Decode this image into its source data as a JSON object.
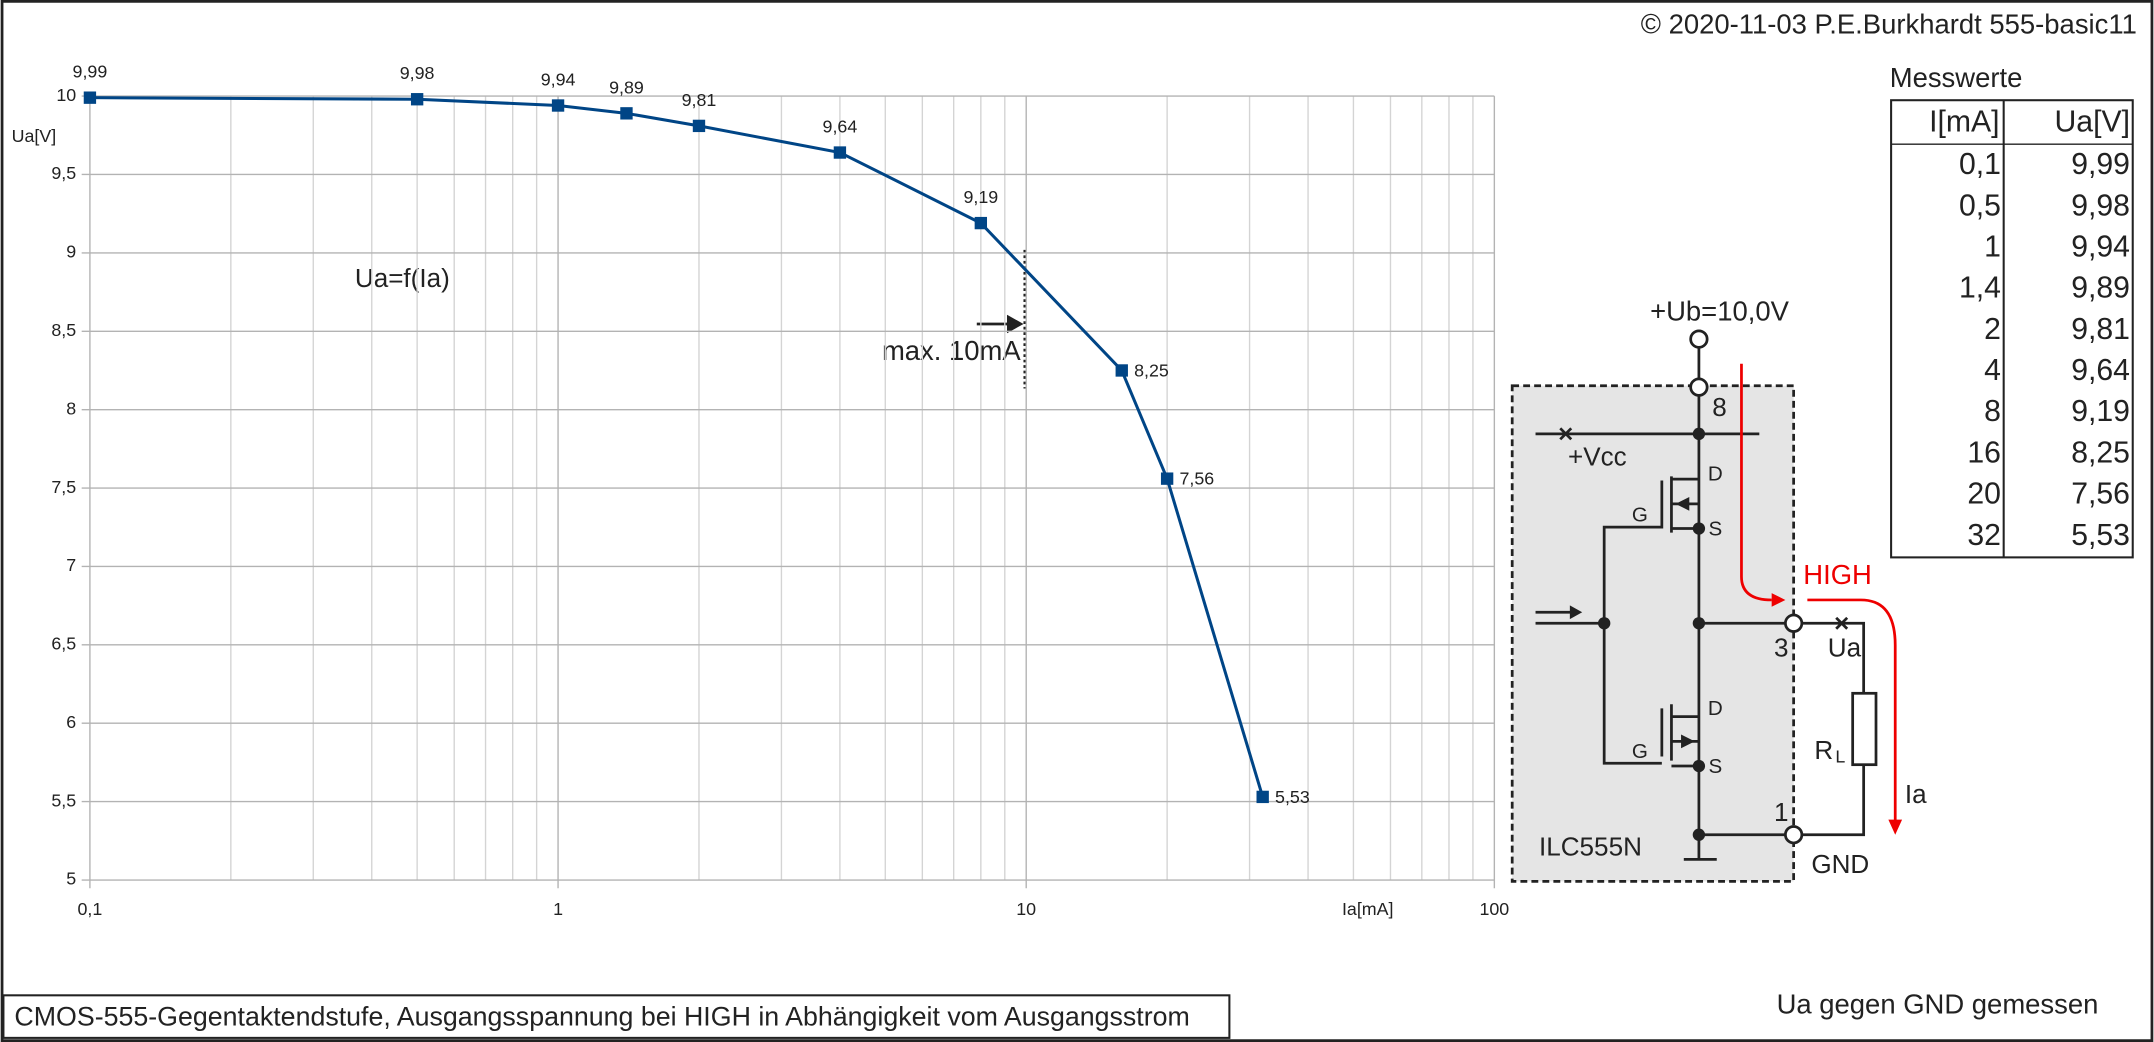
{
  "copyright": "© 2020-11-03 P.E.Burkhardt 555-basic11",
  "footnote": "Ua gegen GND gemessen",
  "chart_data": {
    "type": "line",
    "title": "CMOS-555-Gegentaktendstufe, Ausgangsspannung bei HIGH in Abhängigkeit vom Ausgangsstrom",
    "annotations": [
      "Ua=f(Ia)",
      "max. 10mA"
    ],
    "x_label": "Ia[mA]",
    "y_label": "Ua[V]",
    "x": [
      0.1,
      0.5,
      1,
      1.4,
      2,
      4,
      8,
      16,
      20,
      32
    ],
    "series": [
      {
        "name": "Ua=f(Ia)",
        "color": "#004586",
        "values": [
          9.99,
          9.98,
          9.94,
          9.89,
          9.81,
          9.64,
          9.19,
          8.25,
          7.56,
          5.53
        ],
        "value_labels": [
          "9,99",
          "9,98",
          "9,94",
          "9,89",
          "9,81",
          "9,64",
          "9,19",
          "8,25",
          "7,56",
          "5,53"
        ]
      }
    ],
    "xlim": [
      0.1,
      100
    ],
    "ylim": [
      5,
      10
    ],
    "xlog": true,
    "grid": true,
    "xticks": [
      {
        "value": 0.1,
        "label": "0,1"
      },
      1,
      10,
      100
    ],
    "yticks": [
      5,
      {
        "value": 5.5,
        "label": "5,5"
      },
      6,
      {
        "value": 6.5,
        "label": "6,5"
      },
      7,
      {
        "value": 7.5,
        "label": "7,5"
      },
      8,
      {
        "value": 8.5,
        "label": "8,5"
      },
      9,
      {
        "value": 9.5,
        "label": "9,5"
      },
      10
    ]
  },
  "table": {
    "title": "Messwerte",
    "columns": [
      "I[mA]",
      "Ua[V]"
    ],
    "rows": [
      [
        "0,1",
        "9,99"
      ],
      [
        "0,5",
        "9,98"
      ],
      [
        "1",
        "9,94"
      ],
      [
        "1,4",
        "9,89"
      ],
      [
        "2",
        "9,81"
      ],
      [
        "4",
        "9,64"
      ],
      [
        "8",
        "9,19"
      ],
      [
        "16",
        "8,25"
      ],
      [
        "20",
        "7,56"
      ],
      [
        "32",
        "5,53"
      ]
    ]
  },
  "diagram": {
    "labels": [
      "+Ub=10,0V",
      "8",
      "+Vcc",
      "D",
      "S",
      "G",
      "D",
      "S",
      "G",
      "HIGH",
      "3",
      "Ua",
      "R",
      "L",
      "Ia",
      "1",
      "GND",
      "ILC555N"
    ]
  }
}
